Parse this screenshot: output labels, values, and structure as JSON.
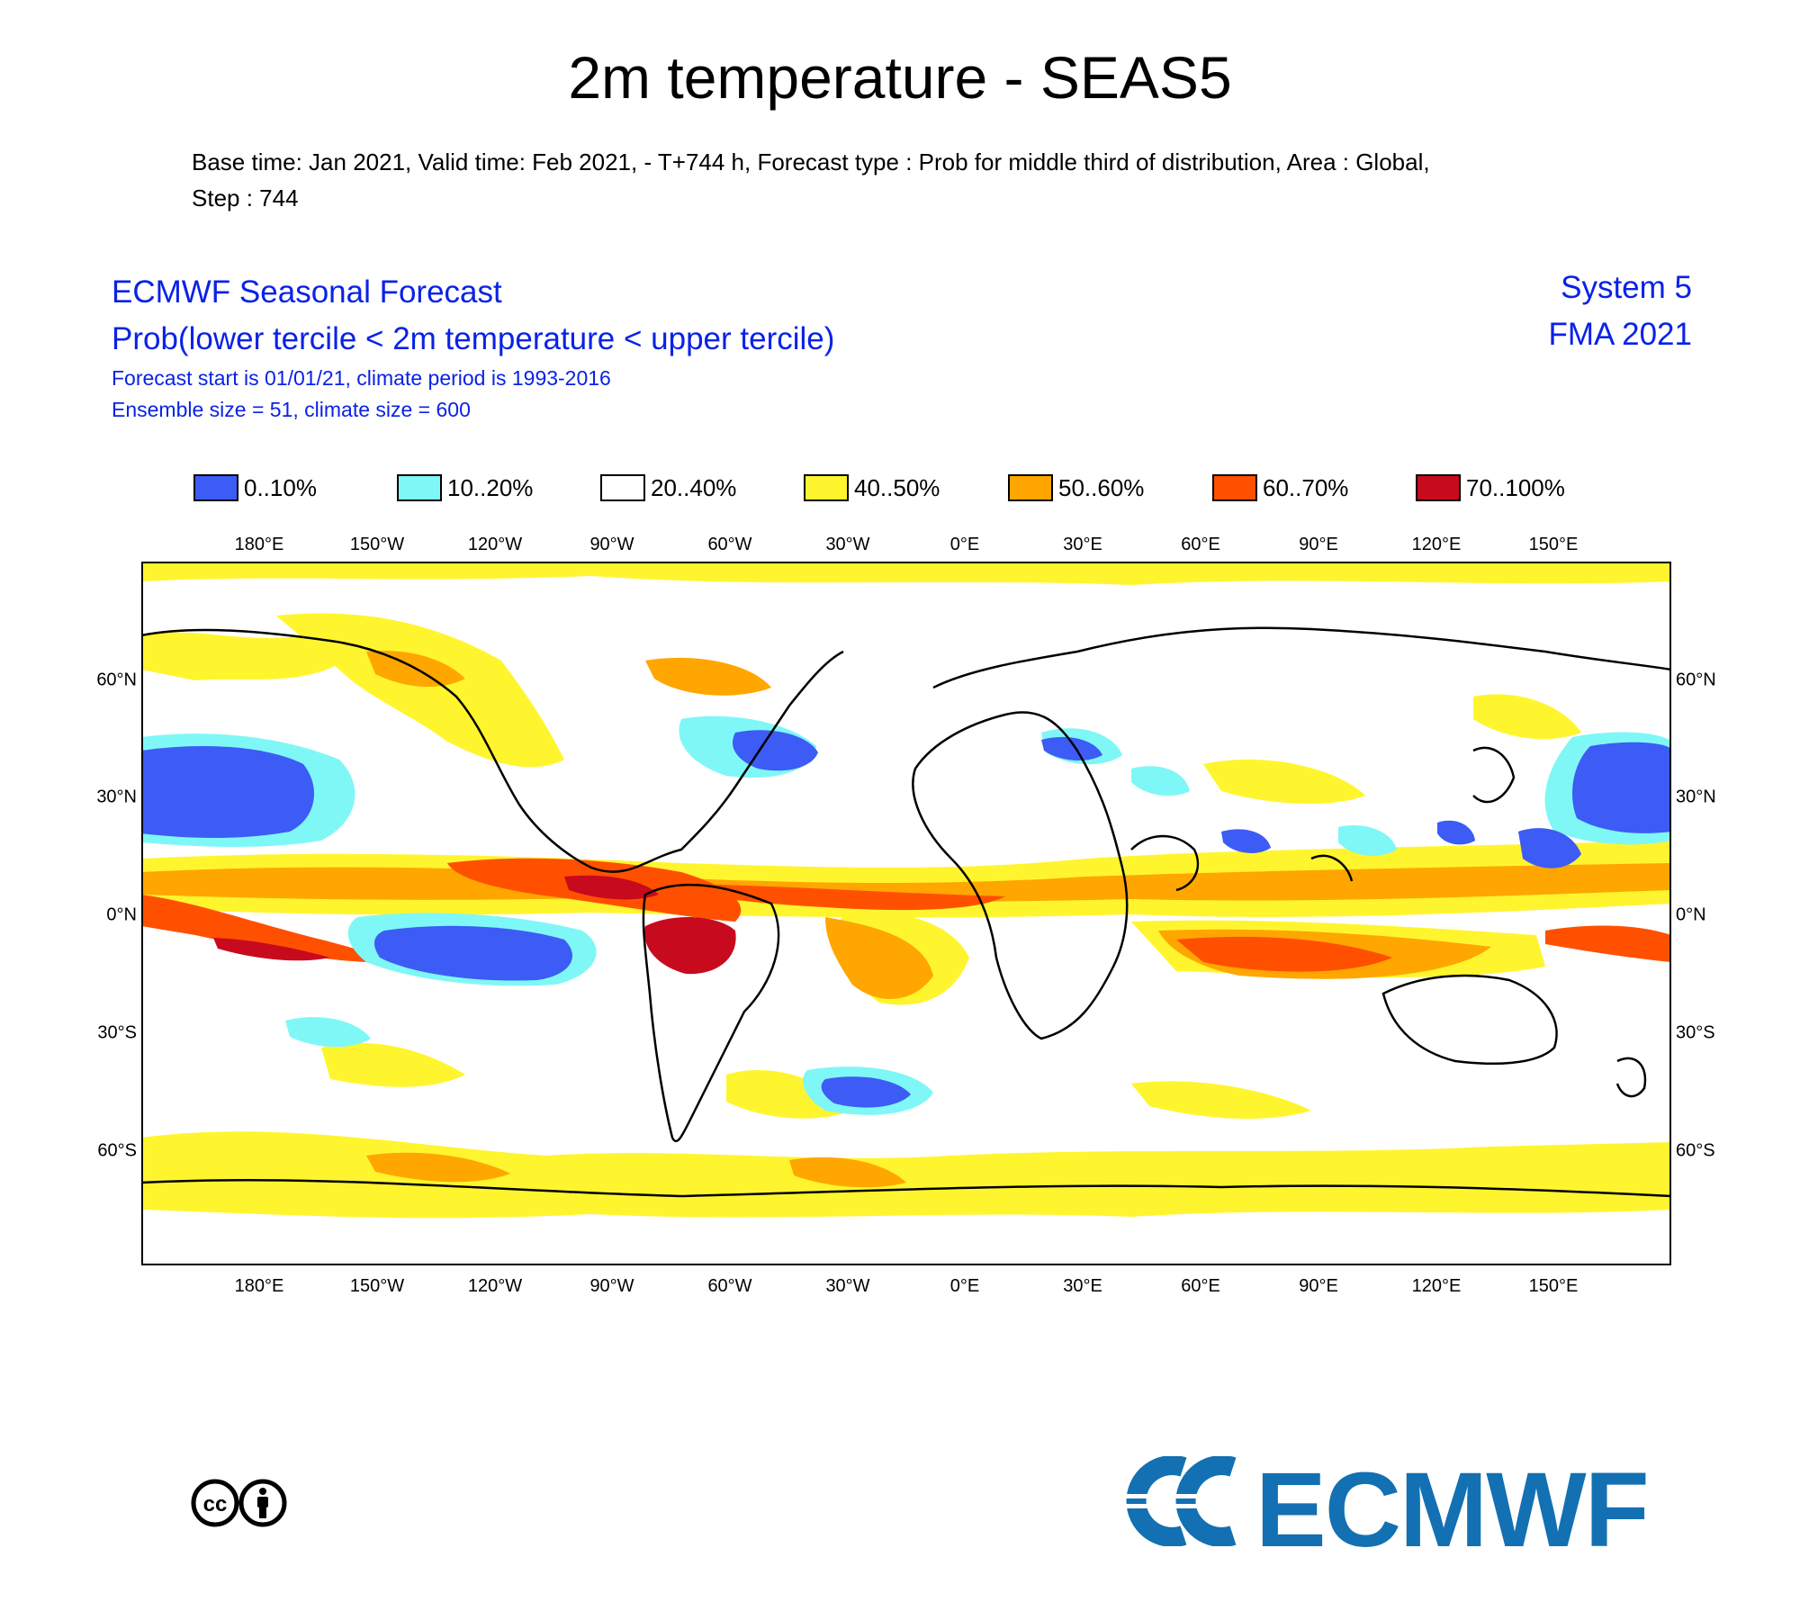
{
  "header": {
    "title": "2m temperature - SEAS5",
    "meta_line1": "Base time: Jan 2021, Valid time: Feb 2021, - T+744 h, Forecast type : Prob for middle third of distribution, Area : Global,",
    "meta_line2": "Step : 744"
  },
  "panel": {
    "title": "ECMWF Seasonal Forecast",
    "quantity": "Prob(lower tercile < 2m temperature < upper tercile)",
    "forecast_start": "Forecast start is 01/01/21, climate period is 1993-2016",
    "ensemble": "Ensemble size = 51, climate size = 600",
    "system": "System 5",
    "period": "FMA 2021"
  },
  "legend": [
    {
      "label": "0..10%",
      "color": "#3c5cf5"
    },
    {
      "label": "10..20%",
      "color": "#7ff7f7"
    },
    {
      "label": "20..40%",
      "color": "#ffffff"
    },
    {
      "label": "40..50%",
      "color": "#fff52e"
    },
    {
      "label": "50..60%",
      "color": "#ffa600"
    },
    {
      "label": "60..70%",
      "color": "#ff5000"
    },
    {
      "label": "70..100%",
      "color": "#c80a1e"
    }
  ],
  "axes": {
    "lon_ticks": [
      "180°E",
      "150°W",
      "120°W",
      "90°W",
      "60°W",
      "30°W",
      "0°E",
      "30°E",
      "60°E",
      "90°E",
      "120°E",
      "150°E"
    ],
    "lat_ticks_left": [
      "60°N",
      "30°N",
      "0°N",
      "30°S",
      "60°S"
    ],
    "lat_ticks_right": [
      "60°N",
      "30°N",
      "0°N",
      "30°S",
      "60°S"
    ]
  },
  "logos": {
    "ecmwf": "ECMWF",
    "cc_license": "cc-by-icon"
  }
}
